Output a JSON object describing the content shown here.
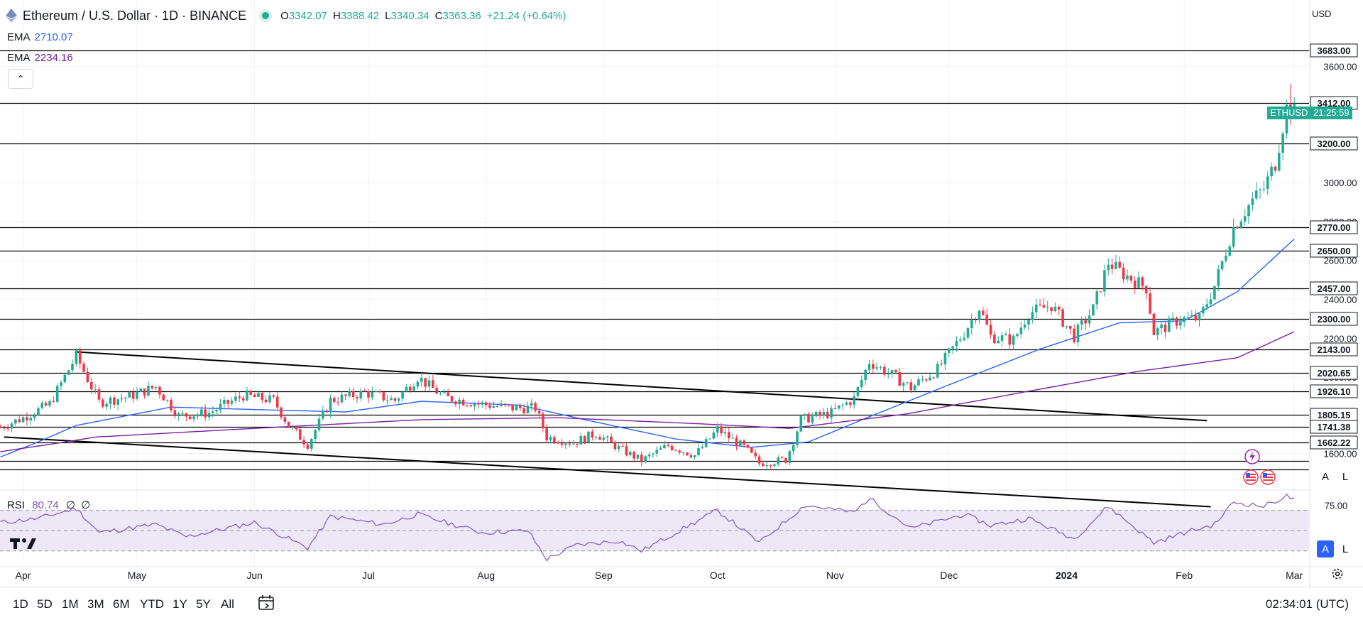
{
  "header": {
    "title": "Ethereum / U.S. Dollar · 1D · BINANCE",
    "open_label": "O",
    "open": "3342.07",
    "high_label": "H",
    "high": "3388.42",
    "low_label": "L",
    "low": "3340.34",
    "close_label": "C",
    "close": "3363.36",
    "change": "+21.24 (+0.64%)"
  },
  "legends": {
    "ema_fast_label": "EMA",
    "ema_fast_value": "2710.07",
    "ema_slow_label": "EMA",
    "ema_slow_value": "2234.16",
    "rsi_label": "RSI",
    "rsi_value": "80.74",
    "rsi_extra1": "∅",
    "rsi_extra2": "∅"
  },
  "currency": "USD",
  "price_tag": {
    "symbol": "ETHUSD",
    "countdown": "21:25:59"
  },
  "time_ranges": [
    "1D",
    "5D",
    "1M",
    "3M",
    "6M",
    "YTD",
    "1Y",
    "5Y",
    "All"
  ],
  "clock": "02:34:01 (UTC)",
  "scale_buttons": {
    "auto": "A",
    "log": "L"
  },
  "colors": {
    "up": "#22ab94",
    "down": "#f23645",
    "ema_fast": "#2962ff",
    "ema_slow": "#7b1fa2",
    "rsi_line": "#7e57c2",
    "rsi_band": "#ede7f6",
    "hlines": "#000000"
  },
  "chart_data": [
    {
      "type": "candlestick",
      "title": "Ethereum / U.S. Dollar · 1D · BINANCE",
      "x_tick_labels": [
        "Apr",
        "May",
        "Jun",
        "Jul",
        "Aug",
        "Sep",
        "Oct",
        "Nov",
        "Dec",
        "2024",
        "Feb",
        "Mar"
      ],
      "y_tick_labels": [
        "1600.00",
        "2000.00",
        "2200.00",
        "2400.00",
        "2600.00",
        "2800.00",
        "3000.00",
        "3600.00"
      ],
      "ylim": [
        1450,
        3800
      ],
      "horizontal_levels": [
        "3683.00",
        "3412.00",
        "3200.00",
        "2770.00",
        "2650.00",
        "2457.00",
        "2300.00",
        "2143.00",
        "2020.65",
        "1926.10",
        "1805.15",
        "1741.38",
        "1662.22"
      ],
      "last_price_tag": "ETHUSD",
      "trendlines": [
        {
          "from": [
            "2023-04-15",
            2130
          ],
          "to": [
            "2024-02-07",
            1775
          ]
        },
        {
          "from": [
            "2023-03-27",
            1690
          ],
          "to": [
            "2024-02-08",
            1300
          ]
        }
      ],
      "series": [
        {
          "name": "ETHUSD",
          "keypoints": [
            [
              "2023-03-26",
              1740
            ],
            [
              "2023-04-01",
              1790
            ],
            [
              "2023-04-08",
              1860
            ],
            [
              "2023-04-15",
              2110
            ],
            [
              "2023-04-21",
              1870
            ],
            [
              "2023-04-29",
              1900
            ],
            [
              "2023-05-06",
              1950
            ],
            [
              "2023-05-12",
              1800
            ],
            [
              "2023-05-20",
              1815
            ],
            [
              "2023-05-29",
              1905
            ],
            [
              "2023-06-06",
              1880
            ],
            [
              "2023-06-10",
              1750
            ],
            [
              "2023-06-15",
              1650
            ],
            [
              "2023-06-21",
              1880
            ],
            [
              "2023-06-30",
              1920
            ],
            [
              "2023-07-08",
              1880
            ],
            [
              "2023-07-14",
              2000
            ],
            [
              "2023-07-21",
              1895
            ],
            [
              "2023-07-31",
              1860
            ],
            [
              "2023-08-08",
              1840
            ],
            [
              "2023-08-14",
              1840
            ],
            [
              "2023-08-17",
              1690
            ],
            [
              "2023-08-24",
              1660
            ],
            [
              "2023-08-30",
              1710
            ],
            [
              "2023-09-05",
              1630
            ],
            [
              "2023-09-11",
              1560
            ],
            [
              "2023-09-18",
              1645
            ],
            [
              "2023-09-25",
              1590
            ],
            [
              "2023-10-01",
              1730
            ],
            [
              "2023-10-08",
              1635
            ],
            [
              "2023-10-12",
              1545
            ],
            [
              "2023-10-19",
              1565
            ],
            [
              "2023-10-23",
              1780
            ],
            [
              "2023-10-31",
              1815
            ],
            [
              "2023-11-06",
              1890
            ],
            [
              "2023-11-10",
              2080
            ],
            [
              "2023-11-16",
              2010
            ],
            [
              "2023-11-21",
              1945
            ],
            [
              "2023-11-28",
              2040
            ],
            [
              "2023-12-05",
              2230
            ],
            [
              "2023-12-09",
              2360
            ],
            [
              "2023-12-12",
              2210
            ],
            [
              "2023-12-18",
              2190
            ],
            [
              "2023-12-22",
              2330
            ],
            [
              "2023-12-28",
              2370
            ],
            [
              "2024-01-03",
              2210
            ],
            [
              "2024-01-08",
              2350
            ],
            [
              "2024-01-12",
              2590
            ],
            [
              "2024-01-16",
              2530
            ],
            [
              "2024-01-22",
              2460
            ],
            [
              "2024-01-24",
              2230
            ],
            [
              "2024-01-31",
              2300
            ],
            [
              "2024-02-05",
              2300
            ],
            [
              "2024-02-09",
              2470
            ],
            [
              "2024-02-14",
              2770
            ],
            [
              "2024-02-19",
              2910
            ],
            [
              "2024-02-22",
              2970
            ],
            [
              "2024-02-25",
              3100
            ],
            [
              "2024-02-28",
              3385
            ],
            [
              "2024-03-01",
              3363
            ]
          ]
        },
        {
          "name": "EMA",
          "value": "2710.07",
          "keypoints": [
            [
              "2023-03-26",
              1580
            ],
            [
              "2023-04-15",
              1750
            ],
            [
              "2023-05-10",
              1845
            ],
            [
              "2023-06-05",
              1830
            ],
            [
              "2023-06-25",
              1820
            ],
            [
              "2023-07-15",
              1875
            ],
            [
              "2023-08-10",
              1855
            ],
            [
              "2023-08-27",
              1780
            ],
            [
              "2023-09-20",
              1680
            ],
            [
              "2023-10-10",
              1635
            ],
            [
              "2023-10-25",
              1665
            ],
            [
              "2023-11-10",
              1795
            ],
            [
              "2023-12-01",
              1960
            ],
            [
              "2023-12-25",
              2145
            ],
            [
              "2024-01-15",
              2280
            ],
            [
              "2024-02-01",
              2290
            ],
            [
              "2024-02-15",
              2440
            ],
            [
              "2024-03-01",
              2710
            ]
          ]
        },
        {
          "name": "EMA",
          "value": "2234.16",
          "keypoints": [
            [
              "2023-03-26",
              1610
            ],
            [
              "2023-04-20",
              1690
            ],
            [
              "2023-06-01",
              1735
            ],
            [
              "2023-07-15",
              1780
            ],
            [
              "2023-08-20",
              1790
            ],
            [
              "2023-09-25",
              1760
            ],
            [
              "2023-10-20",
              1735
            ],
            [
              "2023-11-20",
              1810
            ],
            [
              "2023-12-20",
              1920
            ],
            [
              "2024-01-20",
              2030
            ],
            [
              "2024-02-15",
              2100
            ],
            [
              "2024-03-01",
              2234
            ]
          ]
        }
      ]
    },
    {
      "type": "line",
      "title": "RSI",
      "y_tick_labels": [
        "75.00"
      ],
      "ylim": [
        20,
        90
      ],
      "band": [
        30,
        70
      ],
      "series": [
        {
          "name": "RSI",
          "value": "80.74",
          "keypoints": [
            [
              "2023-03-26",
              58
            ],
            [
              "2023-04-05",
              62
            ],
            [
              "2023-04-15",
              72
            ],
            [
              "2023-04-21",
              48
            ],
            [
              "2023-05-06",
              56
            ],
            [
              "2023-05-14",
              44
            ],
            [
              "2023-06-01",
              58
            ],
            [
              "2023-06-15",
              33
            ],
            [
              "2023-06-21",
              64
            ],
            [
              "2023-07-05",
              56
            ],
            [
              "2023-07-14",
              66
            ],
            [
              "2023-07-31",
              48
            ],
            [
              "2023-08-12",
              50
            ],
            [
              "2023-08-17",
              22
            ],
            [
              "2023-08-25",
              36
            ],
            [
              "2023-09-05",
              40
            ],
            [
              "2023-09-11",
              30
            ],
            [
              "2023-09-20",
              48
            ],
            [
              "2023-10-01",
              70
            ],
            [
              "2023-10-12",
              38
            ],
            [
              "2023-10-24",
              75
            ],
            [
              "2023-11-06",
              68
            ],
            [
              "2023-11-10",
              82
            ],
            [
              "2023-11-21",
              52
            ],
            [
              "2023-12-05",
              66
            ],
            [
              "2023-12-12",
              55
            ],
            [
              "2023-12-22",
              62
            ],
            [
              "2024-01-03",
              42
            ],
            [
              "2024-01-12",
              74
            ],
            [
              "2024-01-24",
              38
            ],
            [
              "2024-02-01",
              48
            ],
            [
              "2024-02-09",
              56
            ],
            [
              "2024-02-14",
              78
            ],
            [
              "2024-02-22",
              74
            ],
            [
              "2024-02-28",
              84
            ],
            [
              "2024-03-01",
              80.74
            ]
          ]
        }
      ]
    }
  ]
}
